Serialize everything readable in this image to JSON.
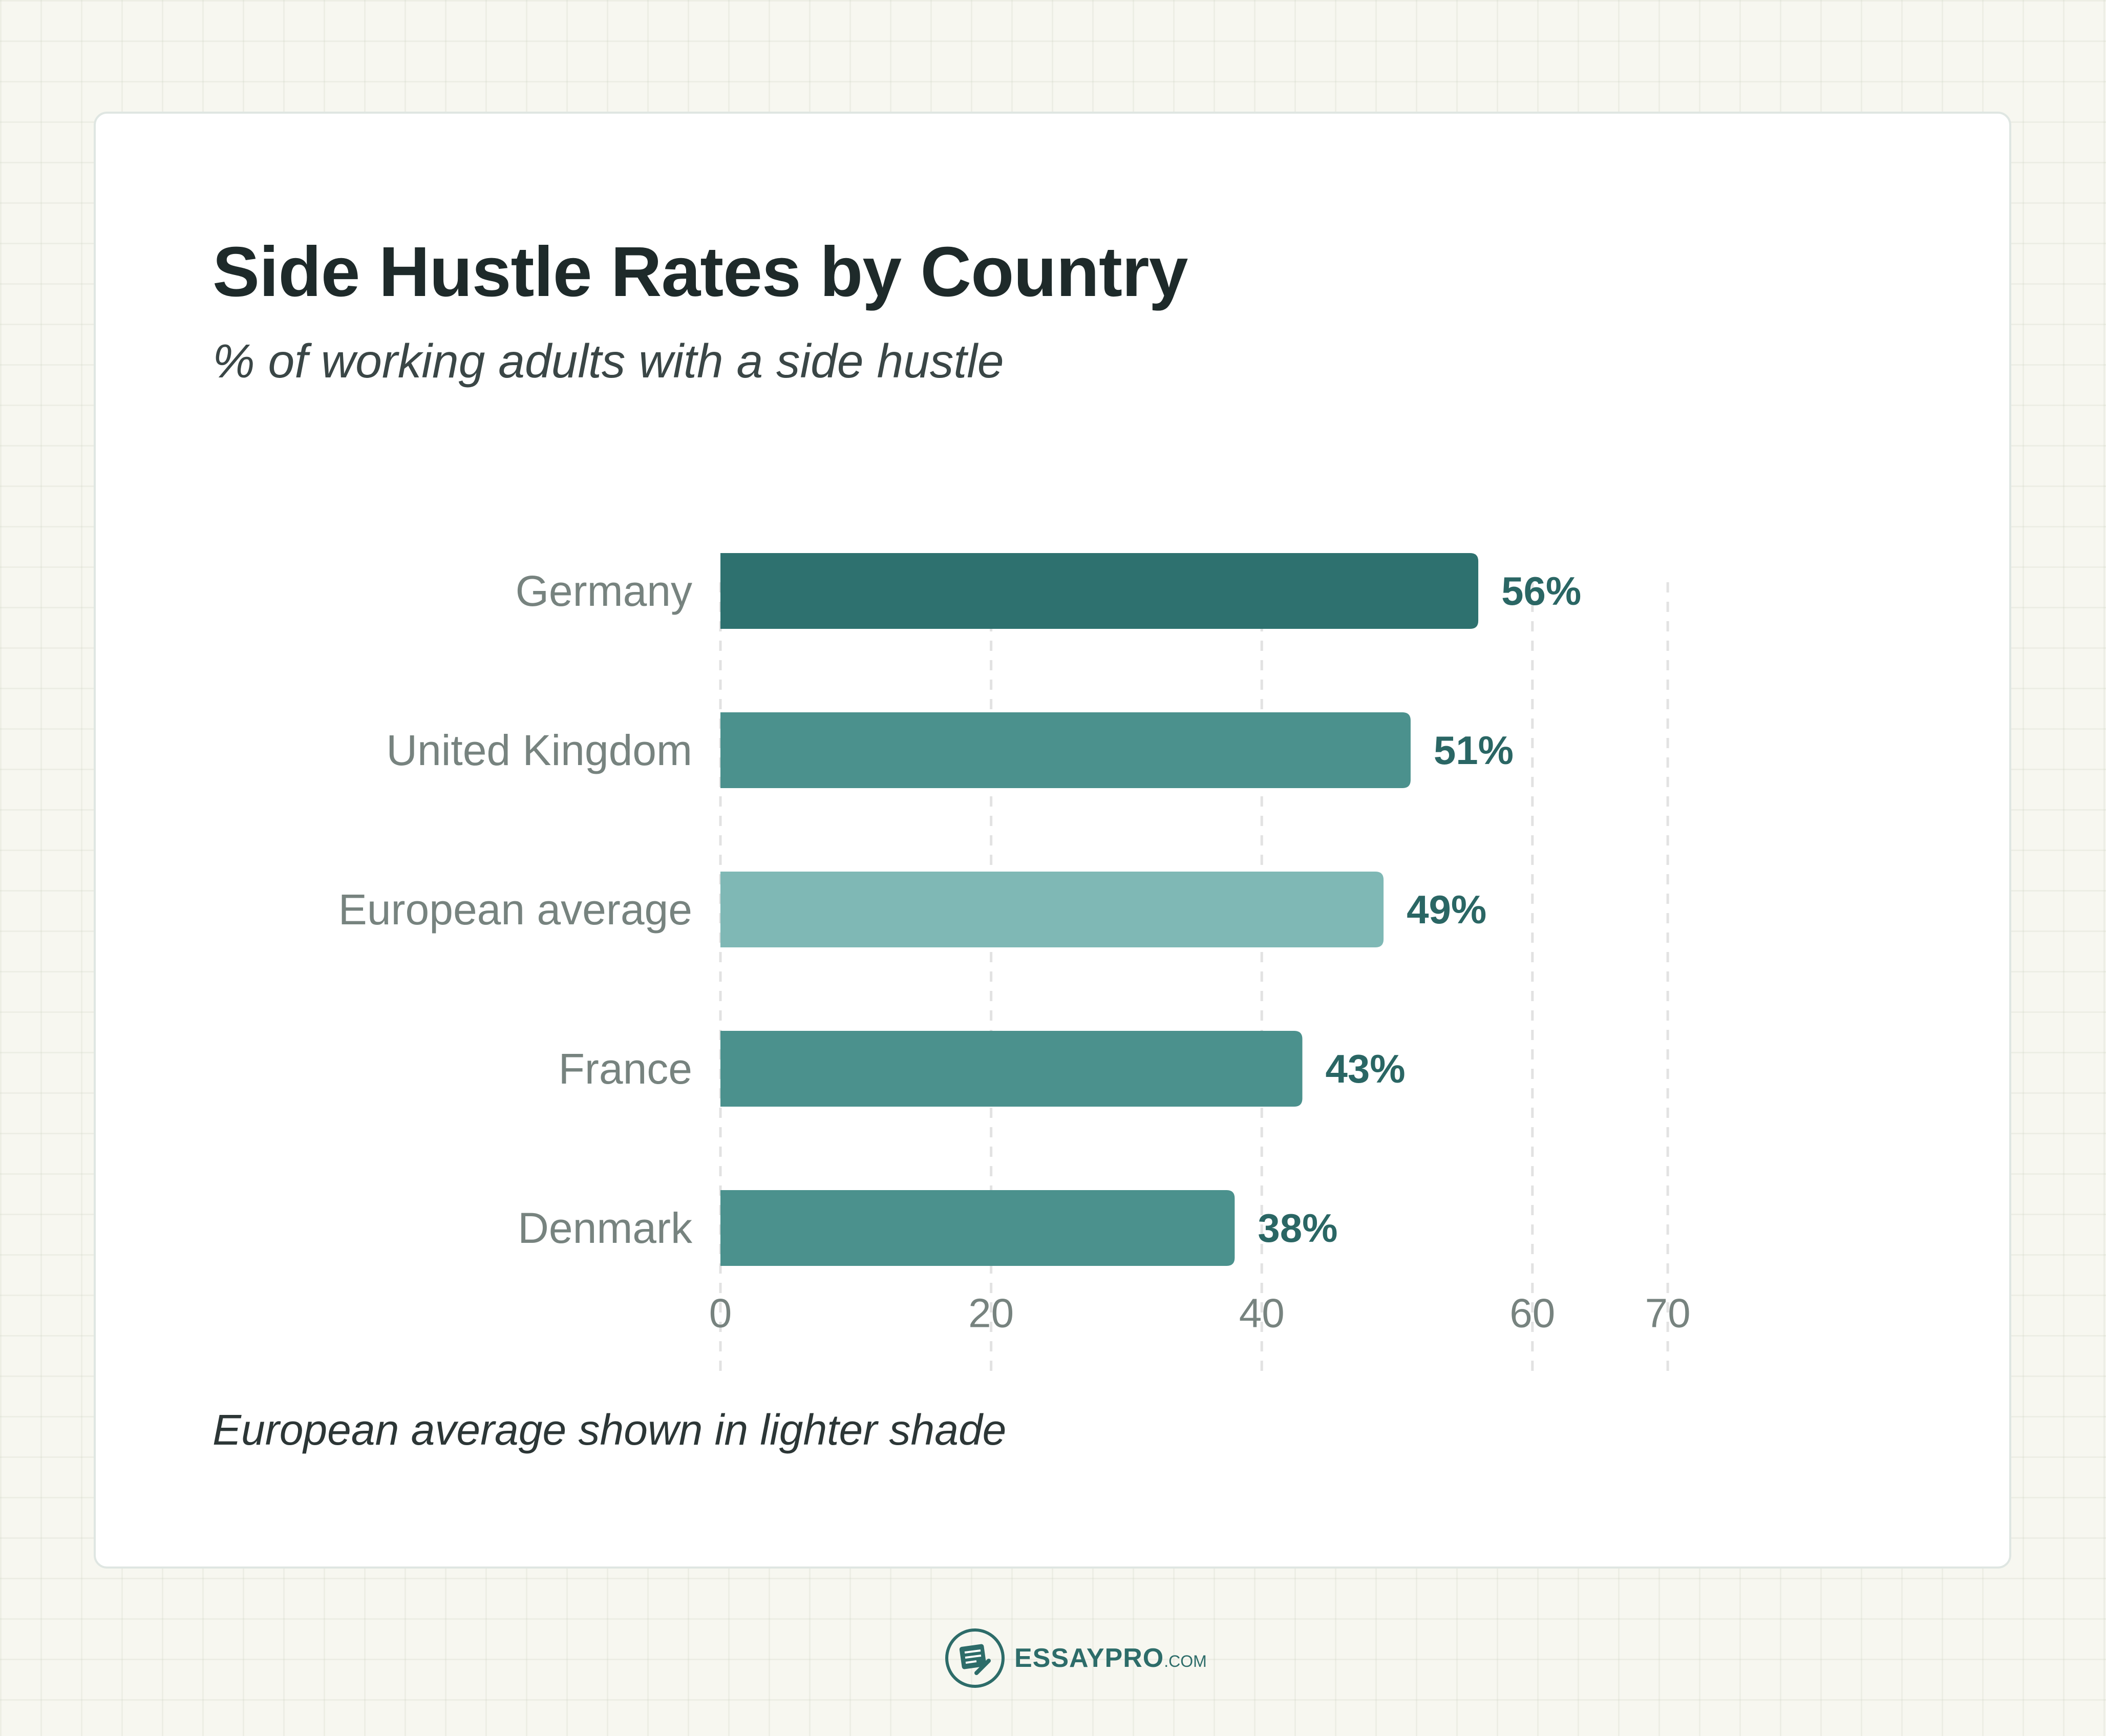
{
  "chart_data": {
    "type": "bar",
    "orientation": "horizontal",
    "title": "Side Hustle Rates by Country",
    "subtitle": "% of working adults with a side hustle",
    "categories": [
      "Germany",
      "United Kingdom",
      "European average",
      "France",
      "Denmark"
    ],
    "values": [
      56,
      51,
      49,
      43,
      38
    ],
    "value_labels": [
      "56%",
      "51%",
      "49%",
      "43%",
      "38%"
    ],
    "xlim": [
      0,
      70
    ],
    "x_ticks": [
      0,
      20,
      40,
      60,
      70
    ],
    "grid": "vertical dashed",
    "colors": {
      "Germany": "#2e716f",
      "United Kingdom": "#4b918d",
      "European average": "#7fb8b5",
      "France": "#4b918d",
      "Denmark": "#4b918d",
      "value_label": "#2a6664",
      "category_label": "#77837f",
      "tick_label": "#77837f",
      "grid": "#e2e2e2"
    }
  },
  "note": "European average shown in lighter shade",
  "brand": {
    "logo": "essaypro-logo-icon",
    "name_a": "ESSAY",
    "name_b": "PRO",
    "suffix": ".COM"
  }
}
